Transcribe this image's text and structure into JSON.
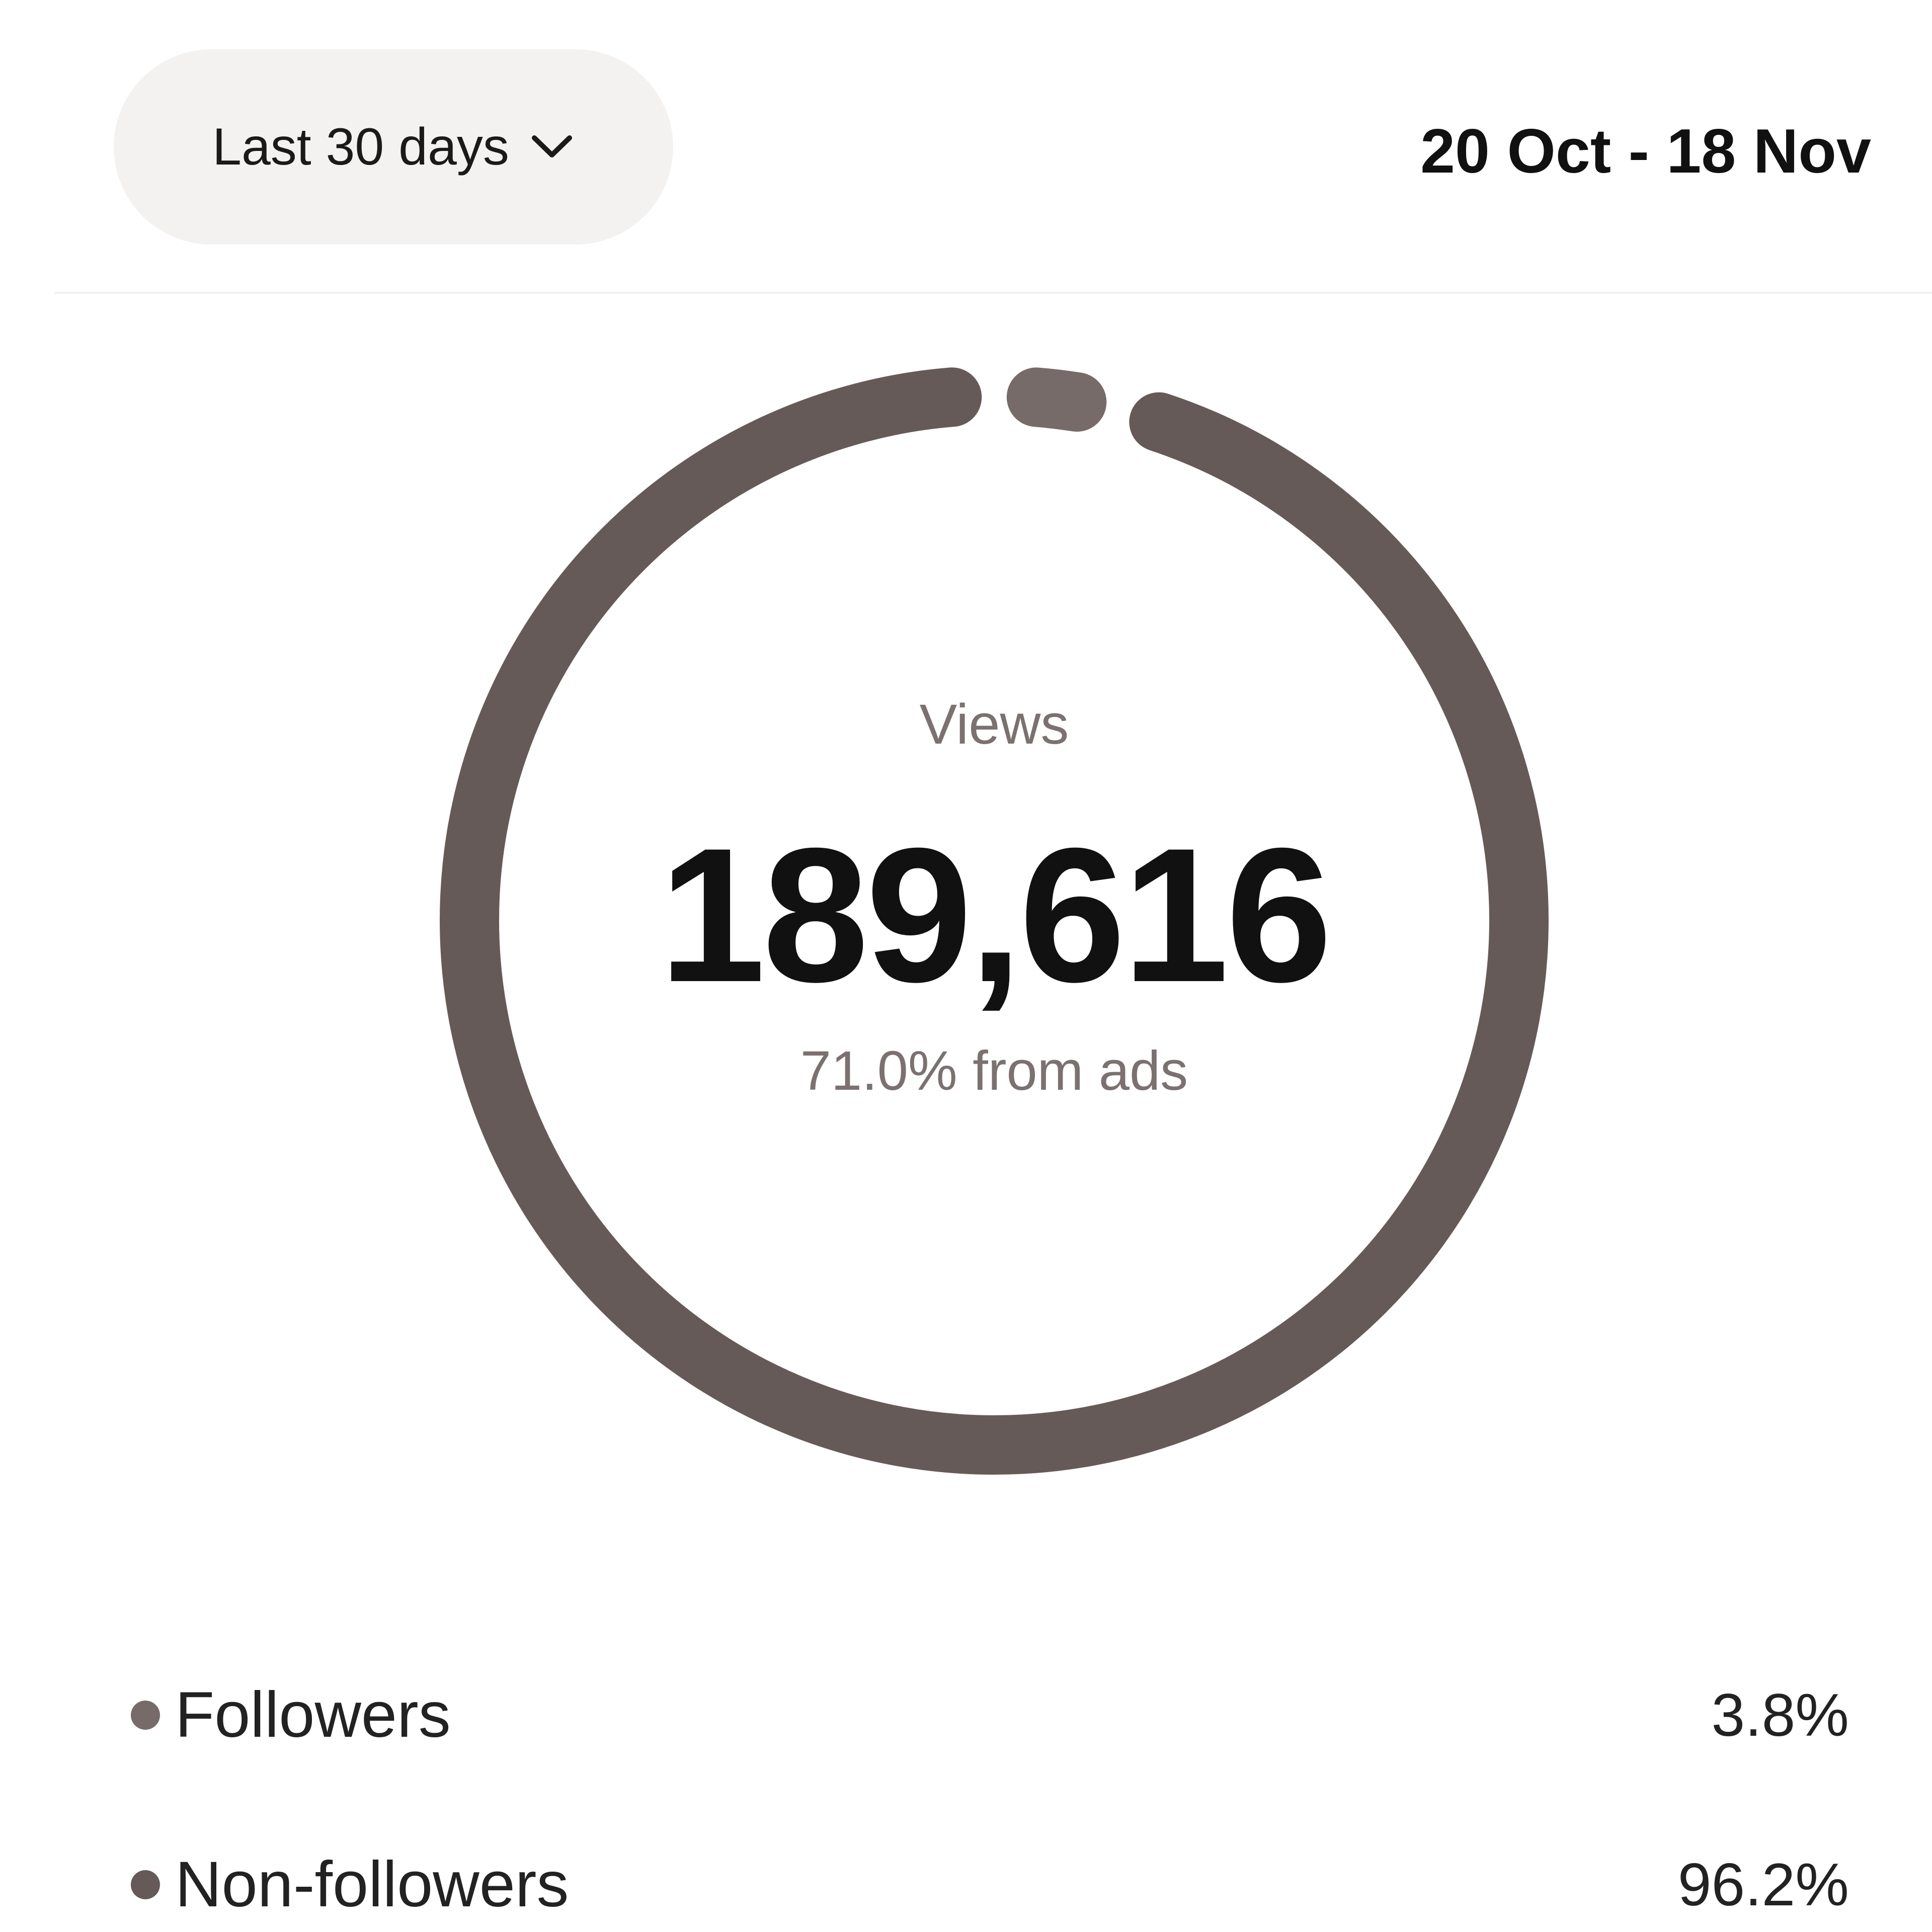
{
  "header": {
    "range_label": "Last 30 days",
    "range_icon": "chevron-down-icon",
    "date_range": "20 Oct - 18 Nov"
  },
  "summary": {
    "metric_label": "Views",
    "total": "189,616",
    "ads_note": "71.0% from ads"
  },
  "chart_data": {
    "type": "pie",
    "categories": [
      "Followers",
      "Non-followers"
    ],
    "values": [
      3.8,
      96.2
    ],
    "colors": [
      "#776b69",
      "#665a58"
    ]
  },
  "legend": [
    {
      "label": "Followers",
      "value": "3.8%",
      "color": "#776b69"
    },
    {
      "label": "Non-followers",
      "value": "96.2%",
      "color": "#665a58"
    }
  ]
}
